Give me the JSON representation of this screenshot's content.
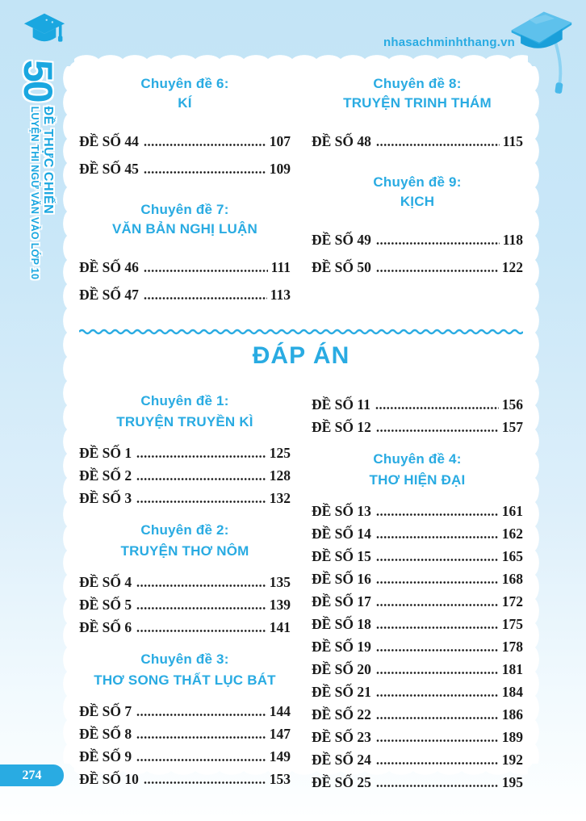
{
  "colors": {
    "accent": "#29abe2",
    "accent2": "#1aa7e0",
    "background_top": "#c3e4f6",
    "text": "#1a1a1a"
  },
  "header": {
    "website": "nhasachminhthang.vn"
  },
  "spine": {
    "number": "50",
    "title": "ĐỀ THỰC CHIẾN",
    "subtitle": "LUYỆN THI NGỮ VĂN VÀO LỚP 10"
  },
  "contents_top": {
    "left": [
      {
        "heading_line1": "Chuyên đề 6:",
        "heading_line2": "KÍ",
        "entries": [
          {
            "label": "ĐỀ SỐ 44",
            "page": "107"
          },
          {
            "label": "ĐỀ SỐ 45",
            "page": "109"
          }
        ]
      },
      {
        "heading_line1": "Chuyên đề 7:",
        "heading_line2": "VĂN BẢN NGHỊ LUẬN",
        "entries": [
          {
            "label": "ĐỀ SỐ 46",
            "page": "111"
          },
          {
            "label": "ĐỀ SỐ 47",
            "page": "113"
          }
        ]
      }
    ],
    "right": [
      {
        "heading_line1": "Chuyên đề 8:",
        "heading_line2": "TRUYỆN TRINH THÁM",
        "entries": [
          {
            "label": "ĐỀ SỐ 48",
            "page": "115"
          }
        ]
      },
      {
        "heading_line1": "Chuyên đề 9:",
        "heading_line2": "KỊCH",
        "entries": [
          {
            "label": "ĐỀ SỐ 49",
            "page": "118"
          },
          {
            "label": "ĐỀ SỐ 50",
            "page": "122"
          }
        ]
      }
    ]
  },
  "answers": {
    "title": "ĐÁP ÁN",
    "left": [
      {
        "heading_line1": "Chuyên đề 1:",
        "heading_line2": "TRUYỆN TRUYỀN KÌ",
        "entries": [
          {
            "label": "ĐỀ SỐ 1",
            "page": "125"
          },
          {
            "label": "ĐỀ SỐ 2",
            "page": "128"
          },
          {
            "label": "ĐỀ SỐ 3",
            "page": "132"
          }
        ]
      },
      {
        "heading_line1": "Chuyên đề 2:",
        "heading_line2": "TRUYỆN THƠ NÔM",
        "entries": [
          {
            "label": "ĐỀ SỐ 4",
            "page": "135"
          },
          {
            "label": "ĐỀ SỐ 5",
            "page": "139"
          },
          {
            "label": "ĐỀ SỐ 6",
            "page": "141"
          }
        ]
      },
      {
        "heading_line1": "Chuyên đề 3:",
        "heading_line2": "THƠ SONG THẤT LỤC BÁT",
        "entries": [
          {
            "label": "ĐỀ SỐ 7",
            "page": "144"
          },
          {
            "label": "ĐỀ SỐ 8",
            "page": "147"
          },
          {
            "label": "ĐỀ SỐ 9",
            "page": "149"
          },
          {
            "label": "ĐỀ SỐ 10",
            "page": "153"
          }
        ]
      }
    ],
    "right": [
      {
        "heading_line1": "",
        "heading_line2": "",
        "entries": [
          {
            "label": "ĐỀ SỐ 11",
            "page": "156"
          },
          {
            "label": "ĐỀ SỐ 12",
            "page": "157"
          }
        ]
      },
      {
        "heading_line1": "Chuyên đề 4:",
        "heading_line2": "THƠ HIỆN ĐẠI",
        "entries": [
          {
            "label": "ĐỀ SỐ 13",
            "page": "161"
          },
          {
            "label": "ĐỀ SỐ 14",
            "page": "162"
          },
          {
            "label": "ĐỀ SỐ 15",
            "page": "165"
          },
          {
            "label": "ĐỀ SỐ 16",
            "page": "168"
          },
          {
            "label": "ĐỀ SỐ 17",
            "page": "172"
          },
          {
            "label": "ĐỀ SỐ 18",
            "page": "175"
          },
          {
            "label": "ĐỀ SỐ 19",
            "page": "178"
          },
          {
            "label": "ĐỀ SỐ 20",
            "page": "181"
          },
          {
            "label": "ĐỀ SỐ 21",
            "page": "184"
          },
          {
            "label": "ĐỀ SỐ 22",
            "page": "186"
          },
          {
            "label": "ĐỀ SỐ 23",
            "page": "189"
          },
          {
            "label": "ĐỀ SỐ 24",
            "page": "192"
          },
          {
            "label": "ĐỀ SỐ 25",
            "page": "195"
          }
        ]
      }
    ]
  },
  "footer": {
    "page_number": "274"
  }
}
